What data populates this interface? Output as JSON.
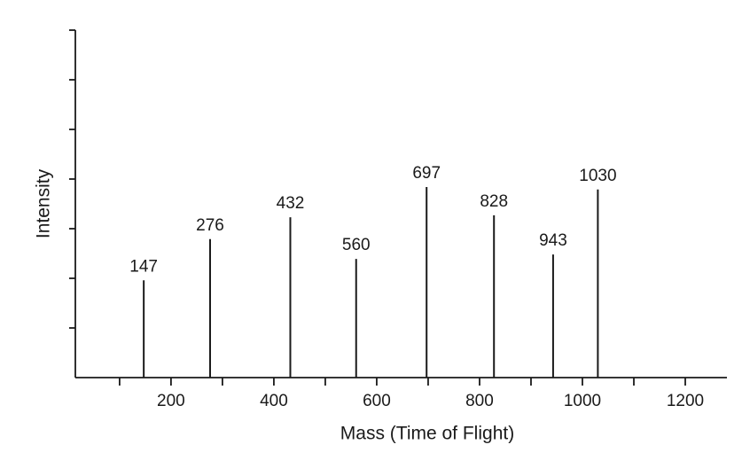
{
  "chart_data": {
    "type": "stem",
    "x_label": "Mass (Time of Flight)",
    "y_label": "Intensity",
    "x": [
      147,
      276,
      432,
      560,
      697,
      828,
      943,
      1030
    ],
    "values": [
      1.96,
      2.79,
      3.23,
      2.39,
      3.84,
      3.27,
      2.48,
      3.79
    ],
    "color": "#1a1a1a",
    "xlim": [
      14,
      1281
    ],
    "xticks": [
      200,
      400,
      600,
      800,
      1000,
      1200
    ],
    "xminor_ticks": [
      100,
      300,
      500,
      700,
      900,
      1100
    ],
    "ylim": [
      0,
      7
    ],
    "yticks": [
      1,
      2,
      3,
      4,
      5,
      6,
      7
    ],
    "show_ytick_labels": false
  }
}
